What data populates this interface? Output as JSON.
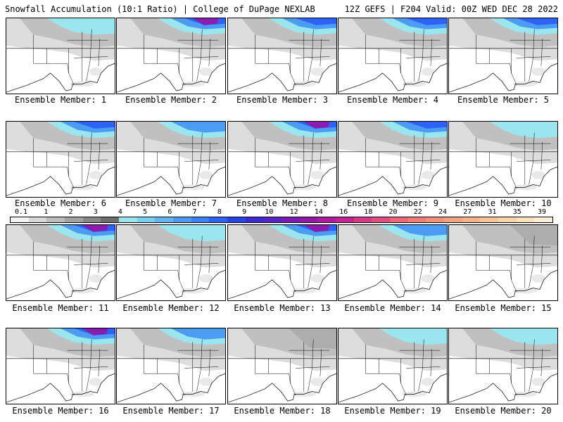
{
  "header": {
    "left": "Snowfall Accumulation (10:1 Ratio) | College of DuPage NEXLAB",
    "right": "12Z GEFS | F204 Valid: 00Z WED DEC 28 2022"
  },
  "legend": {
    "labels": [
      "0.1",
      "1",
      "2",
      "3",
      "4",
      "5",
      "6",
      "7",
      "8",
      "9",
      "10",
      "12",
      "14",
      "16",
      "18",
      "20",
      "22",
      "24",
      "27",
      "31",
      "35",
      "39"
    ],
    "colors": [
      "#f2f2f2",
      "#d8d8d8",
      "#bdbdbd",
      "#a2a2a2",
      "#888888",
      "#6e6e6e",
      "#9ae6ee",
      "#7ad0f0",
      "#62b6f2",
      "#4c9cf4",
      "#3a80f6",
      "#2c62f6",
      "#2444e8",
      "#3a2ad0",
      "#5a22c0",
      "#7a1cb4",
      "#9418a8",
      "#ac1c9c",
      "#c42490",
      "#d63a86",
      "#e0507e",
      "#ea6878",
      "#ee7e76",
      "#f09278",
      "#f2a47e",
      "#f4b488",
      "#f6c496",
      "#f8d4a8",
      "#fae2bc",
      "#fcefd6"
    ]
  },
  "panels": [
    {
      "label": "Ensemble Member: 1",
      "snow": "light"
    },
    {
      "label": "Ensemble Member: 2",
      "snow": "purple"
    },
    {
      "label": "Ensemble Member: 3",
      "snow": "heavy"
    },
    {
      "label": "Ensemble Member: 4",
      "snow": "heavy"
    },
    {
      "label": "Ensemble Member: 5",
      "snow": "heavy"
    },
    {
      "label": "Ensemble Member: 6",
      "snow": "heavy"
    },
    {
      "label": "Ensemble Member: 7",
      "snow": "medium"
    },
    {
      "label": "Ensemble Member: 8",
      "snow": "purple"
    },
    {
      "label": "Ensemble Member: 9",
      "snow": "heavy"
    },
    {
      "label": "Ensemble Member: 10",
      "snow": "light"
    },
    {
      "label": "Ensemble Member: 11",
      "snow": "purple"
    },
    {
      "label": "Ensemble Member: 12",
      "snow": "light"
    },
    {
      "label": "Ensemble Member: 13",
      "snow": "purple"
    },
    {
      "label": "Ensemble Member: 14",
      "snow": "medium"
    },
    {
      "label": "Ensemble Member: 15",
      "snow": "gray"
    },
    {
      "label": "Ensemble Member: 16",
      "snow": "purple"
    },
    {
      "label": "Ensemble Member: 17",
      "snow": "medium"
    },
    {
      "label": "Ensemble Member: 18",
      "snow": "gray"
    },
    {
      "label": "Ensemble Member: 19",
      "snow": "light"
    },
    {
      "label": "Ensemble Member: 20",
      "snow": "light"
    }
  ]
}
